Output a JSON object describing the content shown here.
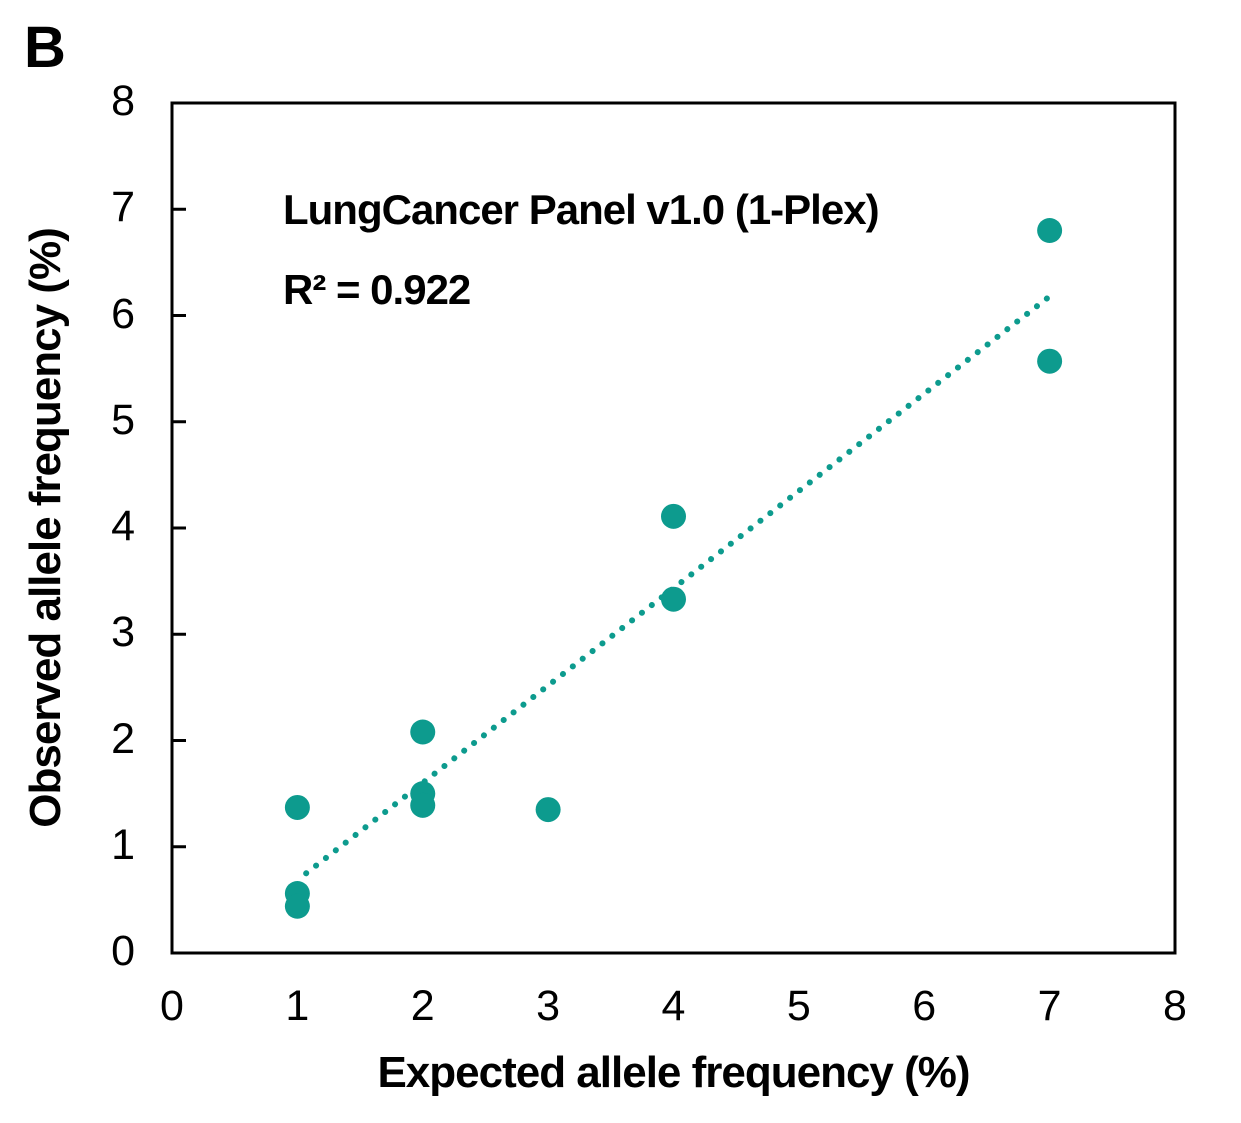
{
  "panel_label": "B",
  "colors": {
    "accent": "#0D9B8E",
    "axis": "#000000",
    "text": "#000000",
    "background": "#FFFFFF"
  },
  "chart_data": {
    "type": "scatter",
    "title": "LungCancer Panel v1.0 (1-Plex)",
    "r_squared_label": "R² = 0.922",
    "r_squared": 0.922,
    "xlabel": "Expected allele frequency (%)",
    "ylabel": "Observed allele frequency (%)",
    "xlim": [
      0,
      8
    ],
    "ylim": [
      0,
      8
    ],
    "x_ticks": [
      "0",
      "1",
      "2",
      "3",
      "4",
      "5",
      "6",
      "7",
      "8"
    ],
    "y_ticks": [
      "0",
      "1",
      "2",
      "3",
      "4",
      "5",
      "6",
      "7",
      "8"
    ],
    "grid": false,
    "legend": false,
    "marker": "circle",
    "marker_radius_px": 12.5,
    "points": [
      {
        "x": 1.0,
        "y": 1.37
      },
      {
        "x": 1.0,
        "y": 0.56
      },
      {
        "x": 1.0,
        "y": 0.44
      },
      {
        "x": 2.0,
        "y": 2.08
      },
      {
        "x": 2.0,
        "y": 1.5
      },
      {
        "x": 2.0,
        "y": 1.39
      },
      {
        "x": 3.0,
        "y": 1.35
      },
      {
        "x": 4.0,
        "y": 4.11
      },
      {
        "x": 4.0,
        "y": 3.33
      },
      {
        "x": 7.0,
        "y": 6.8
      },
      {
        "x": 7.0,
        "y": 5.57
      }
    ],
    "trendline": {
      "style": "dotted",
      "x_start": 1.07,
      "y_start": 0.75,
      "x_end": 7.0,
      "y_end": 6.18
    }
  }
}
